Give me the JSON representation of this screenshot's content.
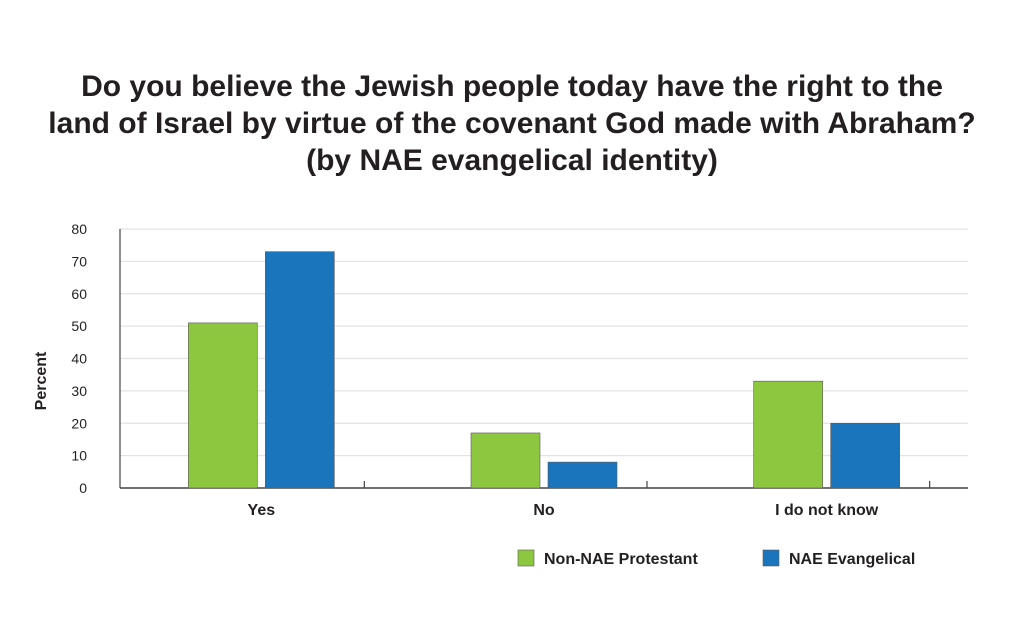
{
  "chart_data": {
    "type": "bar",
    "title": "Do you believe the Jewish people today have the right to the land of Israel by virtue of the covenant God made with Abraham? (by NAE evangelical identity)",
    "title_lines": [
      "Do you believe the Jewish people today have the right to the",
      "land of Israel by virtue of the covenant God made with Abraham?",
      "(by NAE evangelical identity)"
    ],
    "xlabel": "",
    "ylabel": "Percent",
    "ylim": [
      0,
      80
    ],
    "yticks": [
      0,
      10,
      20,
      30,
      40,
      50,
      60,
      70,
      80
    ],
    "grid": true,
    "legend_placement": "bottom-right",
    "categories": [
      "Yes",
      "No",
      "I do not know"
    ],
    "series": [
      {
        "name": "Non-NAE Protestant",
        "color": "#8dc63f",
        "values": [
          51,
          17,
          33
        ]
      },
      {
        "name": "NAE Evangelical",
        "color": "#1b75bc",
        "values": [
          73,
          8,
          20
        ]
      }
    ]
  }
}
